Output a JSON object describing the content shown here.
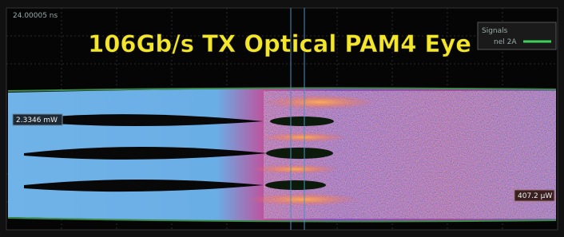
{
  "screen": {
    "time_label": "24.00005 ns",
    "title": "106Gb/s TX Optical PAM4 Eye",
    "legend": {
      "title": "Signals",
      "entry": "nel 2A"
    },
    "markers": {
      "upper": "2.3346 mW",
      "lower": "407.2 μW"
    }
  }
}
